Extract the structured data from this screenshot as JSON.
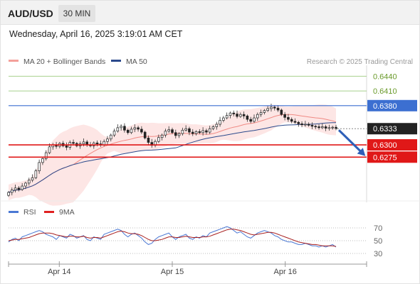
{
  "header": {
    "symbol": "AUD/USD",
    "timeframe": "30 MIN"
  },
  "timestamp": "Wednesday, April 16, 2025 3:19:01 AM CET",
  "watermark": "Research © 2025 Trading Central",
  "price_legend": [
    {
      "label": "MA 20 + Bollinger Bands",
      "color": "#f4a09a"
    },
    {
      "label": "MA 50",
      "color": "#2b4a8c"
    }
  ],
  "rsi_legend": [
    {
      "label": "RSI",
      "color": "#4a78d4"
    },
    {
      "label": "9MA",
      "color": "#e02020"
    }
  ],
  "chart_data": {
    "type": "candlestick",
    "y_min": 0.619,
    "y_max": 0.6455,
    "x_labels": [
      {
        "label": "Apr 14",
        "t": 0.155
      },
      {
        "label": "Apr 15",
        "t": 0.5
      },
      {
        "label": "Apr 16",
        "t": 0.845
      }
    ],
    "closes": [
      0.6203,
      0.6208,
      0.6212,
      0.6209,
      0.6216,
      0.6222,
      0.6228,
      0.6233,
      0.6247,
      0.6264,
      0.6272,
      0.6284,
      0.6296,
      0.63,
      0.6297,
      0.6303,
      0.6298,
      0.6295,
      0.6305,
      0.6303,
      0.6298,
      0.6302,
      0.6306,
      0.63,
      0.6298,
      0.6304,
      0.6302,
      0.63,
      0.6307,
      0.6312,
      0.632,
      0.6328,
      0.6335,
      0.6338,
      0.633,
      0.6325,
      0.6332,
      0.6335,
      0.6332,
      0.6326,
      0.6314,
      0.6305,
      0.6299,
      0.6307,
      0.6315,
      0.632,
      0.6328,
      0.6331,
      0.6325,
      0.6319,
      0.6323,
      0.633,
      0.6333,
      0.6326,
      0.6323,
      0.6327,
      0.6325,
      0.6329,
      0.6326,
      0.6333,
      0.6337,
      0.6342,
      0.635,
      0.6355,
      0.636,
      0.6365,
      0.6363,
      0.6358,
      0.6362,
      0.6359,
      0.6352,
      0.6348,
      0.6355,
      0.6362,
      0.6366,
      0.637,
      0.6374,
      0.6377,
      0.6375,
      0.6371,
      0.6362,
      0.6356,
      0.6352,
      0.6348,
      0.6346,
      0.6343,
      0.6341,
      0.6342,
      0.634,
      0.6338,
      0.6337,
      0.6335,
      0.6337,
      0.6334,
      0.6335,
      0.6336,
      0.6333
    ],
    "key_levels": [
      {
        "value": 0.644,
        "label": "0.6440",
        "style": "resistance-green"
      },
      {
        "value": 0.641,
        "label": "0.6410",
        "style": "resistance-green"
      },
      {
        "value": 0.638,
        "label": "0.6380",
        "style": "pivot-blue"
      },
      {
        "value": 0.6333,
        "label": "0.6333",
        "style": "last-price"
      },
      {
        "value": 0.63,
        "label": "0.6300",
        "style": "support-red"
      },
      {
        "value": 0.6275,
        "label": "0.6275",
        "style": "support-red"
      }
    ],
    "forecast_arrow": {
      "from": 0.6333,
      "to": 0.6295
    },
    "rsi": {
      "ticks": [
        70,
        50,
        30
      ],
      "values": [
        48,
        52,
        54,
        50,
        56,
        58,
        60,
        62,
        64,
        66,
        64,
        60,
        58,
        56,
        52,
        58,
        56,
        54,
        60,
        58,
        54,
        56,
        58,
        52,
        50,
        56,
        54,
        52,
        60,
        62,
        64,
        66,
        68,
        66,
        60,
        56,
        60,
        62,
        58,
        54,
        48,
        44,
        46,
        52,
        56,
        58,
        60,
        62,
        56,
        52,
        56,
        58,
        60,
        54,
        52,
        56,
        54,
        58,
        56,
        62,
        64,
        66,
        68,
        70,
        72,
        70,
        66,
        62,
        64,
        60,
        56,
        54,
        58,
        62,
        64,
        66,
        64,
        62,
        58,
        56,
        52,
        50,
        48,
        48,
        46,
        44,
        44,
        46,
        44,
        42,
        42,
        40,
        42,
        40,
        42,
        44,
        40
      ],
      "ma9": [
        50,
        51,
        52,
        52,
        53,
        54,
        55,
        57,
        59,
        61,
        62,
        62,
        62,
        61,
        59,
        58,
        57,
        56,
        57,
        57,
        56,
        56,
        57,
        55,
        54,
        55,
        55,
        54,
        56,
        58,
        60,
        62,
        64,
        65,
        64,
        62,
        61,
        61,
        60,
        58,
        55,
        52,
        50,
        50,
        51,
        52,
        54,
        56,
        56,
        55,
        55,
        56,
        57,
        56,
        55,
        55,
        55,
        56,
        56,
        57,
        59,
        61,
        63,
        65,
        67,
        68,
        68,
        67,
        66,
        64,
        62,
        60,
        59,
        60,
        61,
        62,
        63,
        63,
        62,
        60,
        58,
        56,
        54,
        52,
        50,
        48,
        47,
        46,
        45,
        44,
        44,
        43,
        42,
        42,
        42,
        42,
        41
      ]
    }
  }
}
